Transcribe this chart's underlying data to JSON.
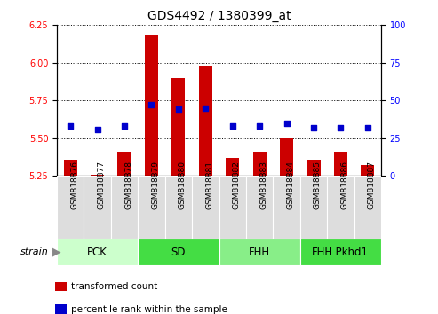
{
  "title": "GDS4492 / 1380399_at",
  "samples": [
    "GSM818876",
    "GSM818877",
    "GSM818878",
    "GSM818879",
    "GSM818880",
    "GSM818881",
    "GSM818882",
    "GSM818883",
    "GSM818884",
    "GSM818885",
    "GSM818886",
    "GSM818887"
  ],
  "red_values": [
    5.36,
    5.26,
    5.41,
    6.19,
    5.9,
    5.98,
    5.37,
    5.41,
    5.5,
    5.36,
    5.41,
    5.32
  ],
  "blue_values_pct": [
    33,
    31,
    33,
    47,
    44,
    45,
    33,
    33,
    35,
    32,
    32,
    32
  ],
  "ylim": [
    5.25,
    6.25
  ],
  "y_left_ticks": [
    5.25,
    5.5,
    5.75,
    6.0,
    6.25
  ],
  "y_right_ticks": [
    0,
    25,
    50,
    75,
    100
  ],
  "groups": [
    {
      "label": "PCK",
      "start": 0,
      "end": 3,
      "color": "#ccffcc"
    },
    {
      "label": "SD",
      "start": 3,
      "end": 6,
      "color": "#44dd44"
    },
    {
      "label": "FHH",
      "start": 6,
      "end": 9,
      "color": "#88ee88"
    },
    {
      "label": "FHH.Pkhd1",
      "start": 9,
      "end": 12,
      "color": "#44dd44"
    }
  ],
  "red_color": "#cc0000",
  "blue_color": "#0000cc",
  "bar_width": 0.5,
  "bg_color": "#ffffff",
  "plot_bg": "#ffffff",
  "label_red": "transformed count",
  "label_blue": "percentile rank within the sample",
  "strain_label": "strain",
  "title_fontsize": 10,
  "tick_fontsize": 7,
  "group_fontsize": 8.5,
  "xtick_fontsize": 6.5
}
